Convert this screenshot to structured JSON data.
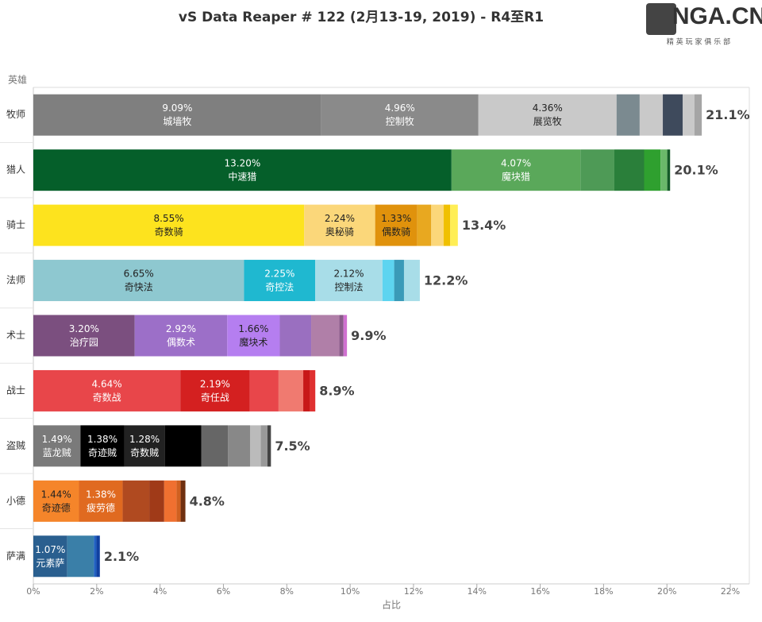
{
  "chart_data": {
    "type": "stacked_barh",
    "title": "vS Data Reaper #  122 (2月13-19, 2019) - R4至R1",
    "y_label": "英雄",
    "x_label": "占比",
    "xlim": [
      0,
      22.6
    ],
    "xticks": [
      {
        "value": 0,
        "label": "0%"
      },
      {
        "value": 2,
        "label": "2%"
      },
      {
        "value": 4,
        "label": "4%"
      },
      {
        "value": 6,
        "label": "6%"
      },
      {
        "value": 8,
        "label": "8%"
      },
      {
        "value": 10,
        "label": "10%"
      },
      {
        "value": 12,
        "label": "12%"
      },
      {
        "value": 14,
        "label": "14%"
      },
      {
        "value": 16,
        "label": "16%"
      },
      {
        "value": 18,
        "label": "18%"
      },
      {
        "value": 20,
        "label": "20%"
      },
      {
        "value": 22,
        "label": "22%"
      }
    ],
    "rows": [
      {
        "category": "牧师",
        "total": 21.1,
        "total_label": "21.1%",
        "segments": [
          {
            "name": "城墙牧",
            "value": 9.09,
            "value_label": "9.09%",
            "color": "#7f7f7f"
          },
          {
            "name": "控制牧",
            "value": 4.96,
            "value_label": "4.96%",
            "color": "#8a8a8a"
          },
          {
            "name": "展览牧",
            "value": 4.36,
            "value_label": "4.36%",
            "color": "#c9c9c9"
          },
          {
            "value": 0.73,
            "color": "#7b8a90"
          },
          {
            "value": 0.73,
            "color": "#c9c9c9"
          },
          {
            "value": 0.63,
            "color": "#3e4a5c"
          },
          {
            "value": 0.37,
            "color": "#c9c9c9"
          },
          {
            "value": 0.23,
            "color": "#a5a5a5"
          }
        ]
      },
      {
        "category": "猎人",
        "total": 20.1,
        "total_label": "20.1%",
        "segments": [
          {
            "name": "中速猎",
            "value": 13.2,
            "value_label": "13.20%",
            "color": "#055f2a"
          },
          {
            "name": "魔块猎",
            "value": 4.07,
            "value_label": "4.07%",
            "color": "#5aa85a"
          },
          {
            "value": 1.07,
            "color": "#4e9a56"
          },
          {
            "value": 0.94,
            "color": "#2a7f3a"
          },
          {
            "value": 0.52,
            "color": "#2fa02f"
          },
          {
            "value": 0.21,
            "color": "#6ab86a"
          },
          {
            "value": 0.09,
            "color": "#145a28"
          }
        ]
      },
      {
        "category": "骑士",
        "total": 13.4,
        "total_label": "13.4%",
        "segments": [
          {
            "name": "奇数骑",
            "value": 8.55,
            "value_label": "8.55%",
            "color": "#fde31e"
          },
          {
            "name": "奥秘骑",
            "value": 2.24,
            "value_label": "2.24%",
            "color": "#fbd77a"
          },
          {
            "name": "偶数骑",
            "value": 1.33,
            "value_label": "1.33%",
            "color": "#e0920c"
          },
          {
            "value": 0.44,
            "color": "#e8a820"
          },
          {
            "value": 0.39,
            "color": "#fbd77a"
          },
          {
            "value": 0.21,
            "color": "#f0c000"
          },
          {
            "value": 0.24,
            "color": "#ffee55"
          }
        ]
      },
      {
        "category": "法师",
        "total": 12.2,
        "total_label": "12.2%",
        "segments": [
          {
            "name": "奇快法",
            "value": 6.65,
            "value_label": "6.65%",
            "color": "#8ec8d0"
          },
          {
            "name": "奇控法",
            "value": 2.25,
            "value_label": "2.25%",
            "color": "#1fb8d0"
          },
          {
            "name": "控制法",
            "value": 2.12,
            "value_label": "2.12%",
            "color": "#a8dde8"
          },
          {
            "value": 0.37,
            "color": "#5dd4f0"
          },
          {
            "value": 0.31,
            "color": "#3a9ab8"
          },
          {
            "value": 0.5,
            "color": "#a8dde8"
          }
        ]
      },
      {
        "category": "术士",
        "total": 9.9,
        "total_label": "9.9%",
        "segments": [
          {
            "name": "治疗园",
            "value": 3.2,
            "value_label": "3.20%",
            "color": "#7b4f7f"
          },
          {
            "name": "偶数术",
            "value": 2.92,
            "value_label": "2.92%",
            "color": "#9c6fc8"
          },
          {
            "name": "魔块术",
            "value": 1.66,
            "value_label": "1.66%",
            "color": "#b57ef0"
          },
          {
            "value": 0.99,
            "color": "#9a6fc0"
          },
          {
            "value": 0.89,
            "color": "#b07fa8"
          },
          {
            "value": 0.13,
            "color": "#8a5a8a"
          },
          {
            "value": 0.11,
            "color": "#d070d0"
          }
        ]
      },
      {
        "category": "战士",
        "total": 8.9,
        "total_label": "8.9%",
        "segments": [
          {
            "name": "奇数战",
            "value": 4.64,
            "value_label": "4.64%",
            "color": "#e8464a"
          },
          {
            "name": "奇任战",
            "value": 2.19,
            "value_label": "2.19%",
            "color": "#d42020"
          },
          {
            "value": 0.91,
            "color": "#e8464a"
          },
          {
            "value": 0.78,
            "color": "#f07a70"
          },
          {
            "value": 0.21,
            "color": "#c81818"
          },
          {
            "value": 0.17,
            "color": "#e03030"
          }
        ]
      },
      {
        "category": "盗贼",
        "total": 7.5,
        "total_label": "7.5%",
        "segments": [
          {
            "name": "蓝龙贼",
            "value": 1.49,
            "value_label": "1.49%",
            "color": "#7a7a7a"
          },
          {
            "name": "奇迹贼",
            "value": 1.38,
            "value_label": "1.38%",
            "color": "#000000"
          },
          {
            "name": "奇数贼",
            "value": 1.28,
            "value_label": "1.28%",
            "color": "#222222"
          },
          {
            "value": 1.15,
            "color": "#000000"
          },
          {
            "value": 0.84,
            "color": "#666666"
          },
          {
            "value": 0.7,
            "color": "#888888"
          },
          {
            "value": 0.34,
            "color": "#bbbbbb"
          },
          {
            "value": 0.21,
            "color": "#999999"
          },
          {
            "value": 0.11,
            "color": "#444444"
          }
        ]
      },
      {
        "category": "小德",
        "total": 4.8,
        "total_label": "4.8%",
        "segments": [
          {
            "name": "奇迹德",
            "value": 1.44,
            "value_label": "1.44%",
            "color": "#f5852a"
          },
          {
            "name": "疲劳德",
            "value": 1.38,
            "value_label": "1.38%",
            "color": "#e06a20"
          },
          {
            "value": 0.84,
            "color": "#b04a20"
          },
          {
            "value": 0.47,
            "color": "#a03a18"
          },
          {
            "value": 0.39,
            "color": "#f07030"
          },
          {
            "value": 0.13,
            "color": "#d06020"
          },
          {
            "value": 0.15,
            "color": "#703010"
          }
        ]
      },
      {
        "category": "萨满",
        "total": 2.1,
        "total_label": "2.1%",
        "segments": [
          {
            "name": "元素萨",
            "value": 1.07,
            "value_label": "1.07%",
            "color": "#2a5f8f"
          },
          {
            "value": 0.84,
            "color": "#3a7fa8"
          },
          {
            "value": 0.08,
            "color": "#2060c0"
          },
          {
            "value": 0.11,
            "color": "#1040a0"
          }
        ]
      }
    ]
  },
  "logo": {
    "text": "NGA.CN",
    "subtitle": "精 英 玩 家 俱 乐 部"
  }
}
